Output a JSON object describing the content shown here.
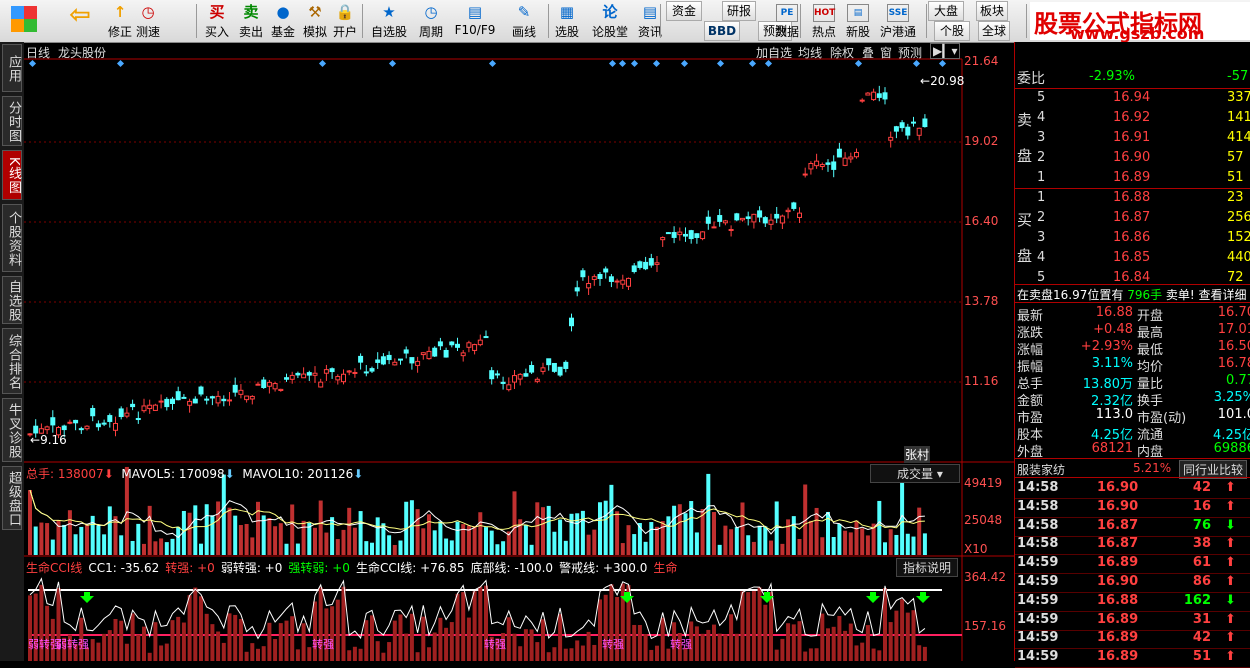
{
  "toolbar": {
    "buttons": [
      {
        "label": "修正",
        "icon": "↑"
      },
      {
        "label": "测速",
        "icon": "◷"
      },
      {
        "label": "买入",
        "icon": "买"
      },
      {
        "label": "卖出",
        "icon": "卖"
      },
      {
        "label": "基金",
        "icon": "●"
      },
      {
        "label": "模拟",
        "icon": "⚒"
      },
      {
        "label": "开户",
        "icon": "🔒"
      },
      {
        "label": "自选股",
        "icon": "★"
      },
      {
        "label": "周期",
        "icon": "◷"
      },
      {
        "label": "F10/F9",
        "icon": "▤"
      },
      {
        "label": "画线",
        "icon": "✎"
      },
      {
        "label": "选股",
        "icon": "▦"
      },
      {
        "label": "论股堂",
        "icon": "论"
      },
      {
        "label": "资讯",
        "icon": "▤"
      },
      {
        "label": "资金",
        "icon": ""
      },
      {
        "label": "BBD",
        "icon": ""
      },
      {
        "label": "研报",
        "icon": ""
      },
      {
        "label": "预测",
        "icon": ""
      },
      {
        "label": "数据",
        "icon": "PE"
      },
      {
        "label": "热点",
        "icon": "HOT"
      },
      {
        "label": "新股",
        "icon": "▤"
      },
      {
        "label": "沪港通",
        "icon": "SSE"
      },
      {
        "label": "大盘",
        "icon": ""
      },
      {
        "label": "个股",
        "icon": ""
      },
      {
        "label": "板块",
        "icon": ""
      },
      {
        "label": "全球",
        "icon": ""
      }
    ],
    "brand_title": "股票公式指标网",
    "brand_url": "www.gszb.com"
  },
  "left_tabs": [
    "应用",
    "分时图",
    "K线图",
    "个股资料",
    "自选股",
    "综合排名",
    "牛叉诊股",
    "超级盘口"
  ],
  "chart": {
    "period": "日线",
    "stock_name": "龙头股份",
    "buttons": [
      "加自选",
      "均线",
      "除权",
      "叠",
      "窗",
      "预测"
    ],
    "price_axis": [
      "21.64",
      "19.02",
      "16.40",
      "13.78",
      "11.16"
    ],
    "high_label": "20.98",
    "low_label": "9.16",
    "marker_text": "张村",
    "volume_header": {
      "total_label": "总手:",
      "total": "138007",
      "mavol5_label": "MAVOL5:",
      "mavol5": "170098",
      "mavol10_label": "MAVOL10:",
      "mavol10": "201126"
    },
    "volume_dropdown": "成交量",
    "volume_axis": [
      "49419",
      "25048",
      "X10"
    ],
    "cci_header": [
      {
        "text": "生命CCI线",
        "color": "#ff4040"
      },
      {
        "text": "CC1: -35.62",
        "color": "#ffffff"
      },
      {
        "text": "转强: +0",
        "color": "#ff4040"
      },
      {
        "text": "弱转强: +0",
        "color": "#ffffff"
      },
      {
        "text": "强转弱: +0",
        "color": "#00ff00"
      },
      {
        "text": "生命CCI线: +76.85",
        "color": "#ffffff"
      },
      {
        "text": "底部线: -100.0",
        "color": "#ffffff"
      },
      {
        "text": "警戒线: +300.0",
        "color": "#ffffff"
      },
      {
        "text": "生命",
        "color": "#ff4040"
      }
    ],
    "cci_dropdown": "指标说明",
    "cci_axis": [
      "364.42",
      "157.16"
    ],
    "cci_tags": [
      "弱转强",
      "弱转强",
      "转强",
      "转强",
      "转强",
      "转强"
    ]
  },
  "quote": {
    "weibi_label": "委比",
    "weibi_value": "-2.93%",
    "weibi_extra": "-57",
    "sell_label": "卖盘",
    "buy_label": "买盘",
    "sell": [
      {
        "lvl": "5",
        "price": "16.94",
        "vol": "337"
      },
      {
        "lvl": "4",
        "price": "16.92",
        "vol": "141"
      },
      {
        "lvl": "3",
        "price": "16.91",
        "vol": "414"
      },
      {
        "lvl": "2",
        "price": "16.90",
        "vol": "57"
      },
      {
        "lvl": "1",
        "price": "16.89",
        "vol": "51"
      }
    ],
    "buy": [
      {
        "lvl": "1",
        "price": "16.88",
        "vol": "23"
      },
      {
        "lvl": "2",
        "price": "16.87",
        "vol": "256"
      },
      {
        "lvl": "3",
        "price": "16.86",
        "vol": "152"
      },
      {
        "lvl": "4",
        "price": "16.85",
        "vol": "440"
      },
      {
        "lvl": "5",
        "price": "16.84",
        "vol": "72"
      }
    ],
    "notice_left": "在卖盘16.97位置有",
    "notice_mid": "796手",
    "notice_right": "卖单! 查看详细",
    "stats": [
      {
        "l1": "最新",
        "v1": "16.88",
        "l2": "开盘",
        "v2": "16.70",
        "c1": "#ff4040",
        "c2": "#ff4040"
      },
      {
        "l1": "涨跌",
        "v1": "+0.48",
        "l2": "最高",
        "v2": "17.01",
        "c1": "#ff4040",
        "c2": "#ff4040"
      },
      {
        "l1": "涨幅",
        "v1": "+2.93%",
        "l2": "最低",
        "v2": "16.50",
        "c1": "#ff4040",
        "c2": "#ff4040"
      },
      {
        "l1": "振幅",
        "v1": "3.11%",
        "l2": "均价",
        "v2": "16.78",
        "c1": "#00ffff",
        "c2": "#ff4040"
      },
      {
        "l1": "总手",
        "v1": "13.80万",
        "l2": "量比",
        "v2": "0.77",
        "c1": "#00ffff",
        "c2": "#00ff00"
      },
      {
        "l1": "金额",
        "v1": "2.32亿",
        "l2": "换手",
        "v2": "3.25%",
        "c1": "#00ffff",
        "c2": "#00ffff"
      },
      {
        "l1": "市盈",
        "v1": "113.0",
        "l2": "市盈(动)",
        "v2": "101.0",
        "c1": "#ffffff",
        "c2": "#ffffff"
      },
      {
        "l1": "股本",
        "v1": "4.25亿",
        "l2": "流通",
        "v2": "4.25亿",
        "c1": "#00ffff",
        "c2": "#00ffff"
      },
      {
        "l1": "外盘",
        "v1": "68121",
        "l2": "内盘",
        "v2": "69886",
        "c1": "#ff4040",
        "c2": "#00ff00"
      }
    ],
    "sector_label": "服装家纺",
    "sector_pct": "5.21%",
    "sector_compare": "同行业比较",
    "ticks": [
      {
        "t": "14:58",
        "p": "16.90",
        "v": "42",
        "d": "up"
      },
      {
        "t": "14:58",
        "p": "16.90",
        "v": "16",
        "d": "up"
      },
      {
        "t": "14:58",
        "p": "16.87",
        "v": "76",
        "d": "down"
      },
      {
        "t": "14:58",
        "p": "16.87",
        "v": "38",
        "d": "up"
      },
      {
        "t": "14:59",
        "p": "16.89",
        "v": "61",
        "d": "up"
      },
      {
        "t": "14:59",
        "p": "16.90",
        "v": "86",
        "d": "up"
      },
      {
        "t": "14:59",
        "p": "16.88",
        "v": "162",
        "d": "down"
      },
      {
        "t": "14:59",
        "p": "16.89",
        "v": "31",
        "d": "up"
      },
      {
        "t": "14:59",
        "p": "16.89",
        "v": "42",
        "d": "up"
      },
      {
        "t": "14:59",
        "p": "16.89",
        "v": "51",
        "d": "up"
      }
    ]
  }
}
